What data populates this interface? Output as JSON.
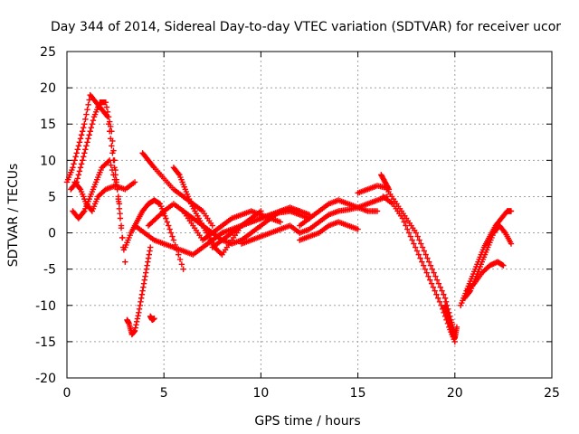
{
  "chart_data": {
    "type": "scatter",
    "title": "Day 344 of 2014, Sidereal Day-to-day VTEC variation (SDTVAR) for receiver ucor",
    "xlabel": "GPS time / hours",
    "ylabel": "SDTVAR / TECUs",
    "xlim": [
      0,
      25
    ],
    "ylim": [
      -20,
      25
    ],
    "x_ticks": [
      0,
      5,
      10,
      15,
      20,
      25
    ],
    "y_ticks": [
      -20,
      -15,
      -10,
      -5,
      0,
      5,
      10,
      15,
      20,
      25
    ],
    "x_tick_labels": [
      "0",
      "5",
      "10",
      "15",
      "20",
      "25"
    ],
    "y_tick_labels": [
      "-20",
      "-15",
      "-10",
      "-5",
      "0",
      "5",
      "10",
      "15",
      "20",
      "25"
    ],
    "grid": true,
    "marker": "+",
    "color": "#ff0000",
    "series": [
      {
        "name": "s1",
        "x": [
          0.0,
          0.3,
          0.6,
          0.9,
          1.2,
          1.5,
          1.8,
          2.1,
          2.4,
          2.7
        ],
        "y": [
          7,
          9,
          12,
          15,
          19,
          18,
          17,
          16,
          10,
          4
        ]
      },
      {
        "name": "s2",
        "x": [
          0.2,
          0.5,
          0.8,
          1.1,
          1.4,
          1.7,
          2.0,
          2.3,
          2.6,
          2.9
        ],
        "y": [
          6,
          7,
          10,
          13,
          16,
          18,
          18,
          14,
          6,
          -2
        ]
      },
      {
        "name": "s3",
        "x": [
          0.3,
          0.6,
          0.9,
          1.2,
          1.5,
          1.8,
          2.2,
          2.6,
          3.0
        ],
        "y": [
          3,
          2,
          3,
          5,
          7,
          9,
          10,
          6,
          -4
        ]
      },
      {
        "name": "s4",
        "x": [
          0.4,
          0.7,
          1.0,
          1.3,
          1.6,
          2.0,
          2.5,
          3.0,
          3.5
        ],
        "y": [
          7,
          6,
          4,
          3,
          5,
          6,
          6.5,
          6,
          7
        ]
      },
      {
        "name": "s5",
        "x": [
          3.1,
          3.2,
          3.35,
          3.5,
          3.7,
          3.9,
          4.1,
          4.3
        ],
        "y": [
          -12,
          -12.5,
          -14,
          -13.5,
          -11,
          -8,
          -5,
          -2
        ]
      },
      {
        "name": "s6",
        "x": [
          3.0,
          3.3,
          3.6,
          3.9,
          4.2,
          4.5,
          4.8,
          5.1,
          5.5,
          6.0
        ],
        "y": [
          -2,
          0,
          1.5,
          3,
          4,
          4.5,
          4,
          2,
          -1,
          -5
        ]
      },
      {
        "name": "s7",
        "x": [
          3.9,
          4.2,
          4.5,
          5.0,
          5.5,
          6.0,
          6.5,
          7.0,
          7.5
        ],
        "y": [
          11,
          10,
          9,
          7.5,
          6,
          5,
          4,
          3,
          1
        ]
      },
      {
        "name": "s8",
        "x": [
          3.5,
          4.0,
          4.5,
          5.0,
          5.5,
          6.0,
          6.5,
          7.0,
          7.5,
          8.0
        ],
        "y": [
          1,
          0,
          -1,
          -1.5,
          -2,
          -2.5,
          -3,
          -2,
          -1,
          0
        ]
      },
      {
        "name": "s9",
        "x": [
          4.2,
          4.6,
          5.0,
          5.5,
          6.0,
          6.5,
          7.0,
          7.5,
          8.0,
          8.5,
          9.0,
          9.5,
          10.0,
          10.5,
          11.0
        ],
        "y": [
          1,
          2,
          3,
          4,
          3,
          1,
          -1,
          0,
          1,
          2,
          2.5,
          3,
          2.5,
          2,
          1.5
        ]
      },
      {
        "name": "s10",
        "x": [
          4.3,
          4.4,
          4.5
        ],
        "y": [
          -11.5,
          -12,
          -11.8
        ]
      },
      {
        "name": "s11",
        "x": [
          5.5,
          5.8,
          6.1,
          6.4,
          6.8,
          7.2,
          7.6,
          8.0,
          8.5,
          9.0,
          9.5,
          10.0
        ],
        "y": [
          9,
          8,
          6,
          4,
          2,
          0,
          -2,
          -3,
          -1,
          1,
          2,
          3
        ]
      },
      {
        "name": "s12",
        "x": [
          6.0,
          6.5,
          7.0,
          7.5,
          8.0,
          8.5,
          9.0,
          9.5,
          10.0,
          10.5,
          11.0,
          11.5,
          12.0
        ],
        "y": [
          3,
          2,
          1,
          0,
          -1,
          -1.5,
          -1,
          0,
          1,
          2,
          3,
          3.5,
          3
        ]
      },
      {
        "name": "s13",
        "x": [
          7.5,
          8.0,
          8.5,
          9.0,
          9.5,
          10.0,
          10.5,
          11.0,
          11.5,
          12.0,
          12.5
        ],
        "y": [
          -2,
          -1,
          0,
          1,
          1.5,
          2,
          2.5,
          2.8,
          3,
          2.5,
          2
        ]
      },
      {
        "name": "s14",
        "x": [
          8.0,
          8.5,
          9.0,
          9.5,
          10.0,
          10.5,
          11.0,
          11.5,
          12.0,
          12.5
        ],
        "y": [
          0,
          0.5,
          1,
          1.5,
          2,
          2.5,
          3,
          3.2,
          3,
          2.5
        ]
      },
      {
        "name": "s15",
        "x": [
          9.0,
          9.5,
          10.0,
          10.5,
          11.0,
          11.5,
          12.0
        ],
        "y": [
          -1.5,
          -1,
          -0.5,
          0,
          0.5,
          1,
          0
        ]
      },
      {
        "name": "s16",
        "x": [
          12.0,
          12.5,
          13.0,
          13.5,
          14.0,
          14.5,
          15.0,
          15.5,
          16.0
        ],
        "y": [
          1,
          2,
          3,
          4,
          4.5,
          4,
          3.5,
          3,
          3
        ]
      },
      {
        "name": "s17",
        "x": [
          12.0,
          12.5,
          13.0,
          13.5,
          14.0,
          14.5,
          15.0
        ],
        "y": [
          -1,
          -0.5,
          0,
          1,
          1.5,
          1,
          0.5
        ]
      },
      {
        "name": "s18",
        "x": [
          12.0,
          12.5,
          13.0,
          13.5,
          14.0,
          14.5,
          15.0,
          15.5,
          16.0,
          16.5
        ],
        "y": [
          0,
          0.5,
          1.5,
          2.5,
          3,
          3.2,
          3.5,
          4,
          4.5,
          5
        ]
      },
      {
        "name": "s19",
        "x": [
          15.0,
          15.5,
          16.0,
          16.5
        ],
        "y": [
          5.5,
          6,
          6.5,
          6.2
        ]
      },
      {
        "name": "s20",
        "x": [
          16.2,
          16.4,
          16.6
        ],
        "y": [
          8,
          7,
          6
        ]
      },
      {
        "name": "s21",
        "x": [
          16.5,
          17.0,
          17.5,
          18.0,
          18.5,
          19.0,
          19.5,
          19.8,
          20.0
        ],
        "y": [
          6,
          4,
          2,
          0,
          -3,
          -6,
          -9,
          -12,
          -14
        ]
      },
      {
        "name": "s22",
        "x": [
          16.3,
          16.8,
          17.3,
          17.8,
          18.3,
          18.8,
          19.3,
          19.7,
          20.0
        ],
        "y": [
          5,
          4,
          2,
          -1,
          -4,
          -7,
          -10,
          -13,
          -15
        ]
      },
      {
        "name": "s23",
        "x": [
          19.5,
          19.6,
          19.7,
          19.8,
          19.9,
          20.0,
          20.1
        ],
        "y": [
          -10,
          -11,
          -12,
          -13,
          -14,
          -14.5,
          -13
        ]
      },
      {
        "name": "s24",
        "x": [
          20.3,
          20.6,
          20.9,
          21.2,
          21.5,
          21.8,
          22.1,
          22.4,
          22.7,
          22.9
        ],
        "y": [
          -10,
          -8,
          -6,
          -4,
          -2,
          -0.5,
          1,
          2,
          3,
          3
        ]
      },
      {
        "name": "s25",
        "x": [
          20.5,
          20.8,
          21.1,
          21.4,
          21.7,
          22.0,
          22.3,
          22.6,
          22.9
        ],
        "y": [
          -9,
          -8,
          -6,
          -4,
          -2,
          0,
          1,
          0,
          -1.5
        ]
      },
      {
        "name": "s26",
        "x": [
          20.6,
          21.0,
          21.4,
          21.8,
          22.2,
          22.5
        ],
        "y": [
          -8,
          -7,
          -5.5,
          -4.5,
          -4,
          -4.5
        ]
      }
    ]
  }
}
